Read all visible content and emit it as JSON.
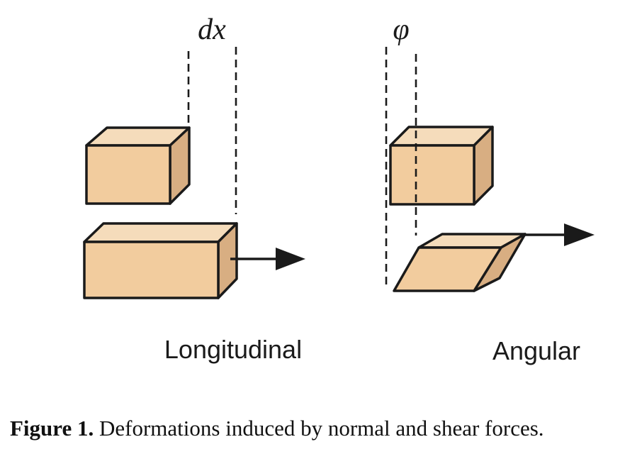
{
  "figure": {
    "colors": {
      "face_front": "#f2cc9e",
      "face_top": "#f5dcbb",
      "face_side": "#d8ae82",
      "outline": "#1a1a1a"
    },
    "panels": [
      {
        "symbol": "dx",
        "label": "Longitudinal"
      },
      {
        "symbol": "φ",
        "label": "Angular"
      }
    ],
    "caption": {
      "number": "Figure 1.",
      "text": " Deformations induced by normal and shear forces."
    }
  }
}
